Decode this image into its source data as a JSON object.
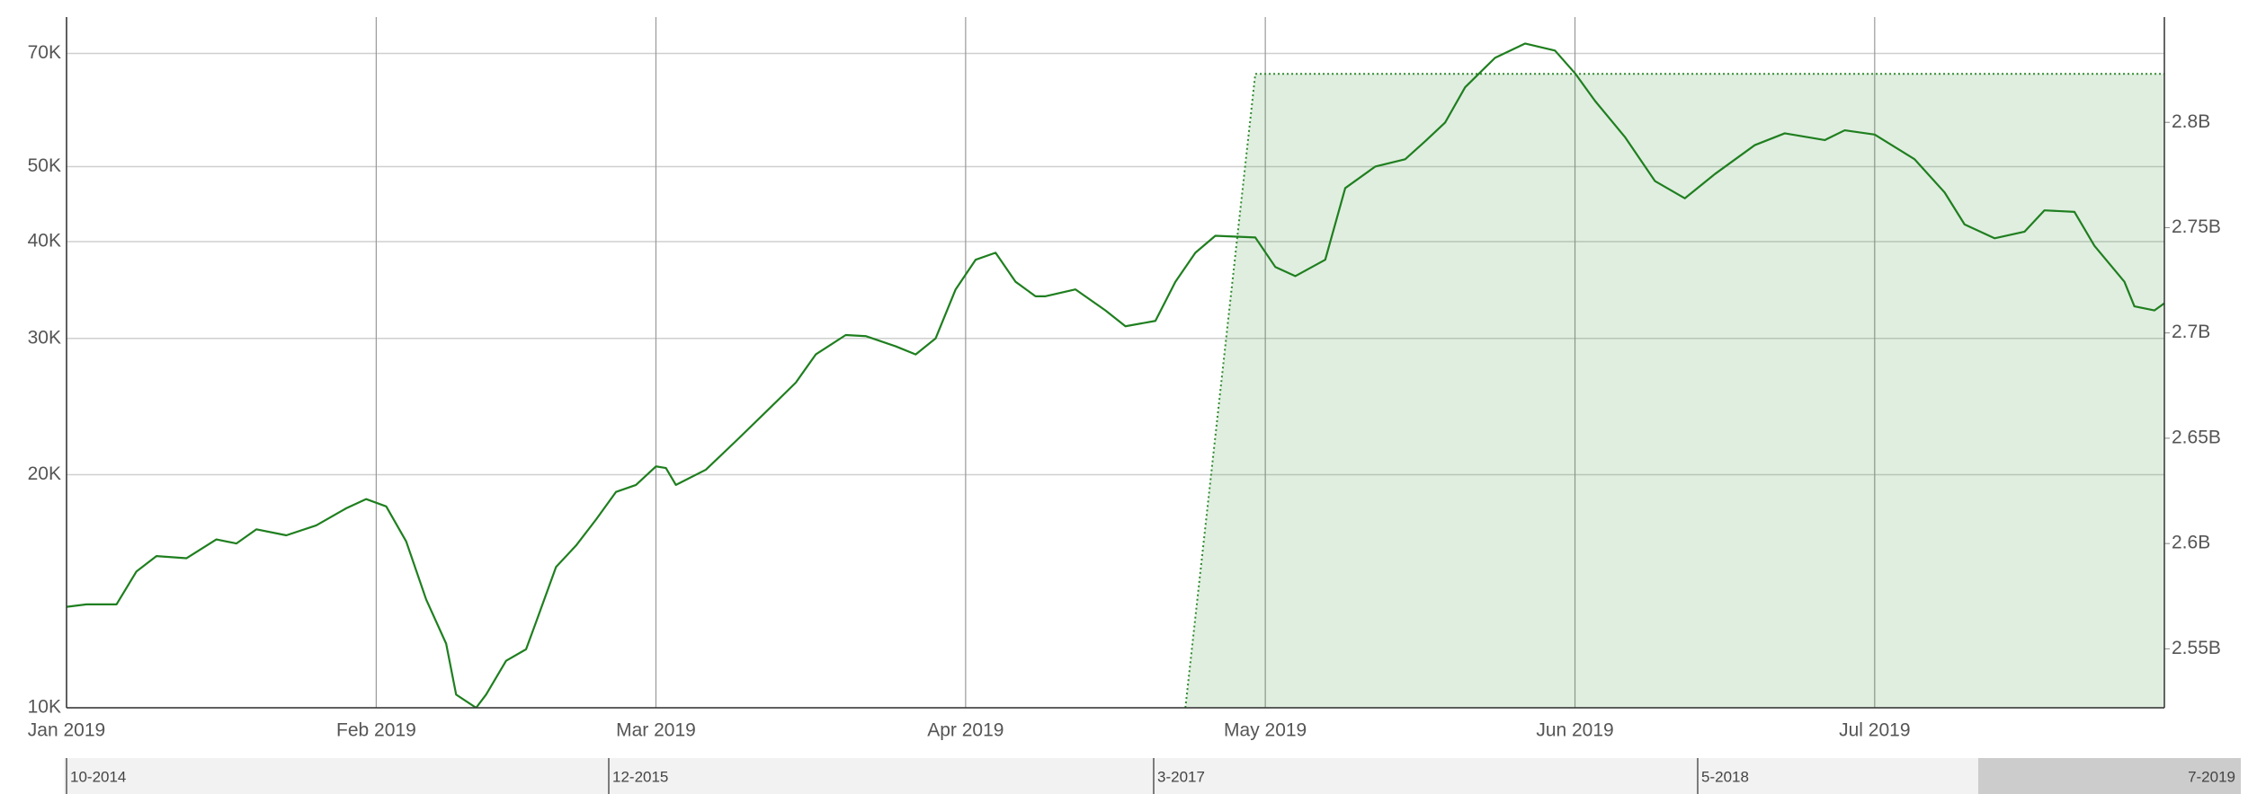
{
  "chart_data": {
    "type": "line",
    "xlim": [
      0,
      210
    ],
    "xticks": [
      {
        "value": 0,
        "label": "Jan 2019"
      },
      {
        "value": 31,
        "label": "Feb 2019"
      },
      {
        "value": 59,
        "label": "Mar 2019"
      },
      {
        "value": 90,
        "label": "Apr 2019"
      },
      {
        "value": 120,
        "label": "May 2019"
      },
      {
        "value": 151,
        "label": "Jun 2019"
      },
      {
        "value": 181,
        "label": "Jul 2019"
      }
    ],
    "ylim": [
      10000,
      78000
    ],
    "log_y": true,
    "yticks": [
      {
        "value": 10000,
        "label": "10K"
      },
      {
        "value": 20000,
        "label": "20K"
      },
      {
        "value": 30000,
        "label": "30K"
      },
      {
        "value": 40000,
        "label": "40K"
      },
      {
        "value": 50000,
        "label": "50K"
      },
      {
        "value": 70000,
        "label": "70K"
      }
    ],
    "y2lim": [
      2522000000,
      2850000000
    ],
    "y2ticks": [
      {
        "value": 2550000000,
        "label": "2.55B"
      },
      {
        "value": 2600000000,
        "label": "2.6B"
      },
      {
        "value": 2650000000,
        "label": "2.65B"
      },
      {
        "value": 2700000000,
        "label": "2.7B"
      },
      {
        "value": 2750000000,
        "label": "2.75B"
      },
      {
        "value": 2800000000,
        "label": "2.8B"
      }
    ],
    "grid": true,
    "series": [
      {
        "kind": "area",
        "axis": "y2",
        "color": "#2e8b2e",
        "x": [
          112,
          119,
          210
        ],
        "values": [
          2522000000,
          2823000000,
          2823000000
        ]
      },
      {
        "kind": "line",
        "color": "#1f7f1f",
        "x": [
          0,
          2,
          5,
          7,
          9,
          12,
          15,
          17,
          19,
          22,
          25,
          28,
          30,
          32,
          34,
          36,
          38,
          39,
          41,
          42,
          44,
          46,
          47,
          49,
          51,
          53,
          55,
          57,
          59,
          60,
          61,
          64,
          67,
          70,
          73,
          75,
          78,
          80,
          83,
          85,
          87,
          89,
          91,
          93,
          95,
          97,
          98,
          101,
          104,
          106,
          109,
          111,
          113,
          115,
          119,
          121,
          123,
          126,
          128,
          131,
          134,
          136,
          138,
          140,
          143,
          146,
          149,
          151,
          153,
          156,
          159,
          162,
          165,
          169,
          172,
          176,
          178,
          181,
          185,
          188,
          190,
          193,
          196,
          198,
          201,
          203,
          206,
          207,
          209,
          210
        ],
        "values": [
          13500,
          13600,
          13600,
          15000,
          15700,
          15600,
          16500,
          16300,
          17000,
          16700,
          17200,
          18100,
          18600,
          18200,
          16400,
          13800,
          12100,
          10400,
          10000,
          10400,
          11500,
          11900,
          12900,
          15200,
          16200,
          17500,
          19000,
          19400,
          20500,
          20400,
          19400,
          20300,
          22100,
          24100,
          26300,
          28600,
          30300,
          30200,
          29300,
          28600,
          30000,
          34700,
          37900,
          38700,
          35500,
          34000,
          34000,
          34700,
          32600,
          31100,
          31600,
          35500,
          38700,
          40700,
          40500,
          37100,
          36100,
          37900,
          46900,
          50000,
          51100,
          53900,
          57000,
          63300,
          69100,
          72100,
          70600,
          66000,
          60800,
          54600,
          47900,
          45500,
          48900,
          53300,
          55200,
          54100,
          55700,
          55000,
          51100,
          46300,
          42100,
          40400,
          41200,
          43900,
          43700,
          39500,
          35500,
          33000,
          32600,
          33300
        ]
      }
    ]
  },
  "navigator": {
    "labels": [
      "10-2014",
      "12-2015",
      "3-2017",
      "5-2018",
      "7-2019"
    ]
  }
}
